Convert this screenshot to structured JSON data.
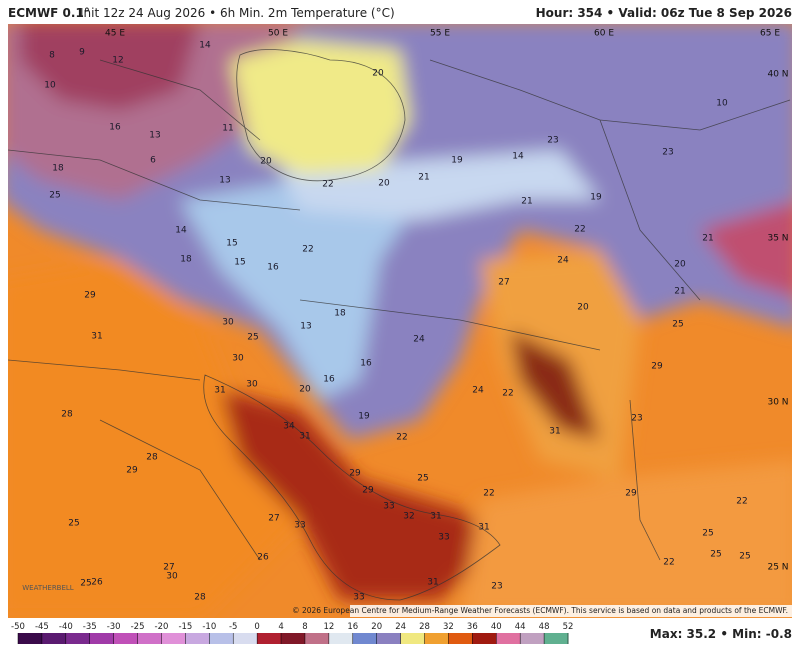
{
  "header": {
    "model": "ECMWF 0.1°",
    "init": "Init 12z 24 Aug 2026 • 6h Min. 2m Temperature (°C)",
    "valid": "Hour: 354 • Valid: 06z Tue 8 Sep 2026"
  },
  "geo_labels": [
    "45 E",
    "50 E",
    "55 E",
    "60 E",
    "65 E",
    "40 N",
    "35 N",
    "30 N",
    "25 N"
  ],
  "temperature_labels": [
    8,
    9,
    10,
    14,
    12,
    20,
    11,
    13,
    16,
    6,
    18,
    25,
    13,
    20,
    22,
    20,
    21,
    19,
    14,
    23,
    23,
    10,
    14,
    15,
    18,
    15,
    16,
    22,
    21,
    19,
    22,
    21,
    24,
    27,
    20,
    20,
    21,
    29,
    30,
    25,
    13,
    18,
    31,
    30,
    16,
    24,
    25,
    29,
    31,
    30,
    16,
    24,
    22,
    20,
    19,
    28,
    34,
    31,
    22,
    31,
    23,
    28,
    29,
    29,
    25,
    29,
    33,
    32,
    31,
    22,
    29,
    22,
    27,
    33,
    33,
    31,
    25,
    25,
    26,
    27,
    30,
    25,
    25,
    25,
    26,
    33,
    31,
    23,
    28,
    22
  ],
  "copyright": "© 2026 European Centre for Medium-Range Weather Forecasts (ECMWF). This service is based on data and products of the ECMWF.",
  "colorbar": {
    "ticks": [
      -50,
      -45,
      -40,
      -35,
      -30,
      -25,
      -20,
      -15,
      -10,
      -5,
      0,
      4,
      8,
      12,
      16,
      20,
      24,
      28,
      32,
      36,
      40,
      44,
      48,
      52
    ],
    "colors": [
      "#3a0a4a",
      "#5a1a70",
      "#7a2a8e",
      "#a03aa8",
      "#c050b8",
      "#d070c8",
      "#e090d8",
      "#c8a8e0",
      "#b8c0e8",
      "#d8dcef",
      "#b02030",
      "#801828",
      "#c07088",
      "#e0e8f0",
      "#7088d0",
      "#8a80c0",
      "#f0e880",
      "#f0a030",
      "#e05a10",
      "#a01a10",
      "#e070a0",
      "#c0a0c0",
      "#60b090"
    ]
  },
  "max_min": "Max: 35.2 • Min: -0.8",
  "logo": "WEATHERBELL"
}
